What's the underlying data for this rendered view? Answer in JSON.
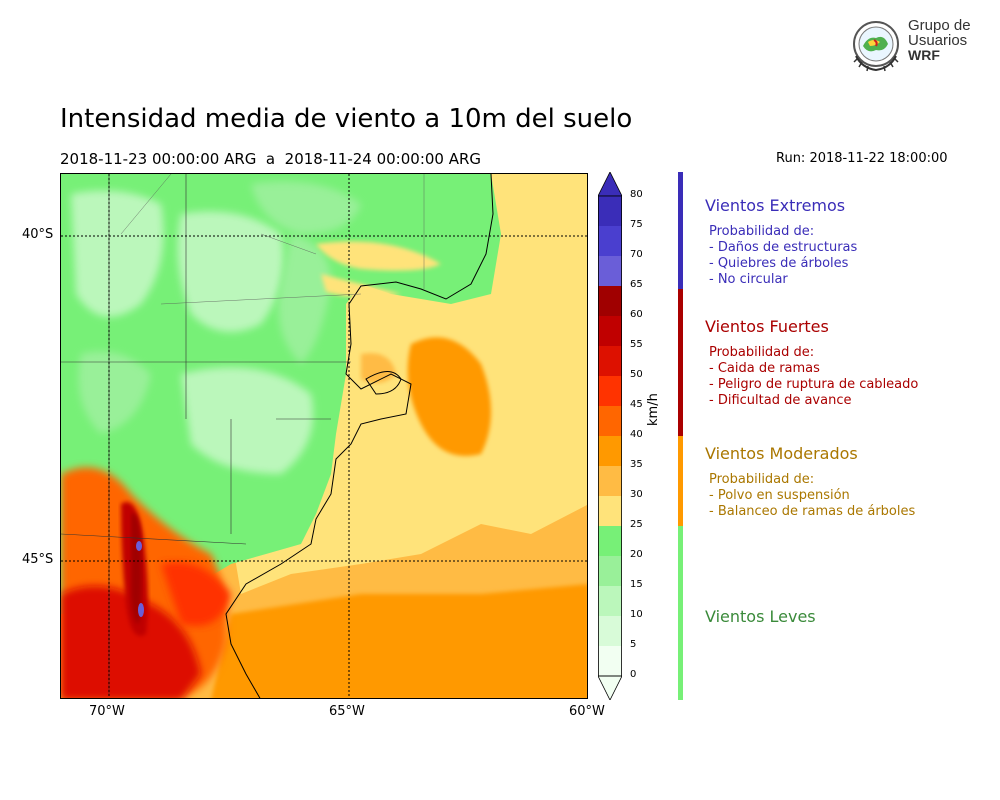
{
  "title": "Intensidad media de viento a 10m del suelo",
  "period": "2018-11-23 00:00:00 ARG  a  2018-11-24 00:00:00 ARG",
  "run": "Run: 2018-11-22 18:00:00",
  "logo": {
    "line1": "Grupo de",
    "line2": "Usuarios",
    "line3": "WRF",
    "icon": "wrf-globe-seal-icon"
  },
  "map": {
    "lat_labels": [
      "40°S",
      "45°S"
    ],
    "lon_labels": [
      "70°W",
      "65°W",
      "60°W"
    ]
  },
  "colorbar": {
    "unit": "km/h",
    "ticks": [
      "80",
      "75",
      "70",
      "65",
      "60",
      "55",
      "50",
      "45",
      "40",
      "35",
      "30",
      "25",
      "20",
      "15",
      "10",
      "5",
      "0"
    ],
    "colors": [
      "#3a2db8",
      "#4a3fcf",
      "#6a5ed8",
      "#a00000",
      "#c00000",
      "#dd1100",
      "#ff3300",
      "#ff6600",
      "#ff9900",
      "#ffbb44",
      "#ffe37a",
      "#77f077",
      "#99f099",
      "#bbf7bb",
      "#d8fbd8",
      "#f2fff2"
    ]
  },
  "categories": [
    {
      "name": "Vientos Extremos",
      "color": "#3a2db8",
      "prob": "Probabilidad de:",
      "items": [
        "- Daños de estructuras",
        "- Quiebres de árboles",
        "- No circular"
      ]
    },
    {
      "name": "Vientos Fuertes",
      "color": "#aa0000",
      "prob": "Probabilidad de:",
      "items": [
        "- Caida de ramas",
        "- Peligro de ruptura de cableado",
        "- Dificultad de avance"
      ]
    },
    {
      "name": "Vientos Moderados",
      "color": "#aa7700",
      "prob": "Probabilidad de:",
      "items": [
        "- Polvo en suspensión",
        "- Balanceo de ramas de árboles"
      ]
    },
    {
      "name": "Vientos Leves",
      "color": "#3a8a3a",
      "prob": "",
      "items": []
    }
  ],
  "category_bar_colors": [
    "#3a2db8",
    "#aa0000",
    "#ff9900",
    "#77f077"
  ]
}
